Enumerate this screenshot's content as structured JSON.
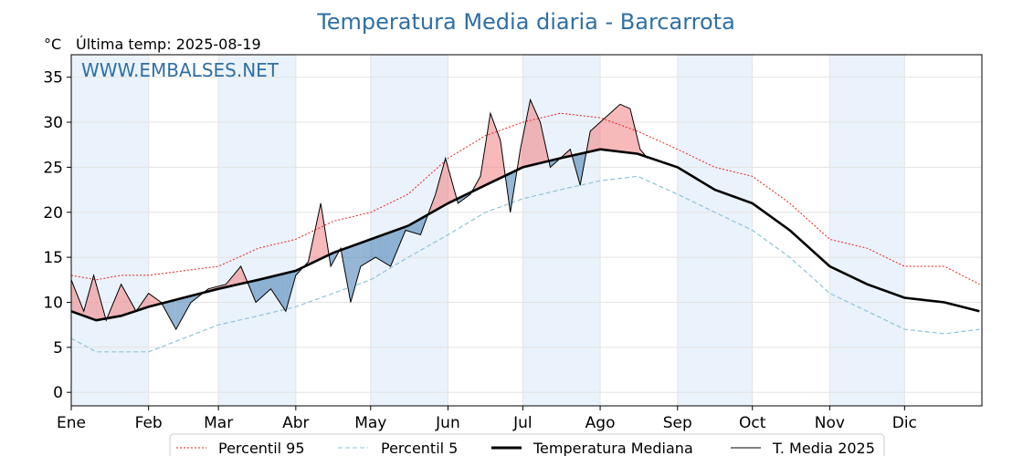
{
  "chart_data": {
    "type": "line",
    "title": "Temperatura Media diaria - Barcarrota",
    "unit_label": "°C",
    "last_temp_label": "Última temp: 2025-08-19",
    "watermark": "WWW.EMBALSES.NET",
    "x_range_days": [
      0,
      365
    ],
    "ylim": [
      -1.5,
      37.5
    ],
    "y_ticks": [
      "0",
      "5",
      "10",
      "15",
      "20",
      "25",
      "30",
      "35"
    ],
    "month_labels": [
      "Ene",
      "Feb",
      "Mar",
      "Abr",
      "May",
      "Jun",
      "Jul",
      "Ago",
      "Sep",
      "Oct",
      "Nov",
      "Dic"
    ],
    "month_start_days": [
      0,
      31,
      59,
      90,
      120,
      151,
      181,
      212,
      243,
      273,
      304,
      334
    ],
    "shaded_months": [
      0,
      2,
      4,
      6,
      8,
      10
    ],
    "colors": {
      "title": "#2f6fa3",
      "p95": "#e8201f",
      "p5": "#8ec3d9",
      "median": "#000000",
      "current": "#000000",
      "above_fill": "#f08080",
      "below_fill": "#4f86b8",
      "month_shade": "#eaf2fb"
    },
    "series": [
      {
        "name": "Percentil 95",
        "style": "dotted",
        "x": [
          0,
          10,
          20,
          31,
          45,
          59,
          75,
          90,
          105,
          120,
          135,
          151,
          166,
          181,
          196,
          212,
          227,
          243,
          258,
          273,
          288,
          304,
          319,
          334,
          350,
          364
        ],
        "y": [
          13,
          12.5,
          13,
          13,
          13.5,
          14,
          16,
          17,
          19,
          20,
          22,
          26,
          28.5,
          30,
          31,
          30.5,
          29,
          27,
          25,
          24,
          21,
          17,
          16,
          14,
          14,
          12
        ]
      },
      {
        "name": "Percentil 5",
        "style": "dashed",
        "x": [
          0,
          10,
          20,
          31,
          45,
          59,
          75,
          90,
          105,
          120,
          135,
          151,
          166,
          181,
          196,
          212,
          227,
          243,
          258,
          273,
          288,
          304,
          319,
          334,
          350,
          364
        ],
        "y": [
          6,
          4.5,
          4.5,
          4.5,
          6,
          7.5,
          8.5,
          9.5,
          11,
          12.5,
          15,
          17.5,
          20,
          21.5,
          22.5,
          23.5,
          24,
          22,
          20,
          18,
          15,
          11,
          9,
          7,
          6.5,
          7
        ]
      },
      {
        "name": "Temperatura Mediana",
        "style": "solid-thick",
        "x": [
          0,
          10,
          20,
          31,
          45,
          59,
          75,
          90,
          105,
          120,
          135,
          151,
          166,
          181,
          196,
          212,
          227,
          243,
          258,
          273,
          288,
          304,
          319,
          334,
          350,
          364
        ],
        "y": [
          9,
          8,
          8.5,
          9.5,
          10.5,
          11.5,
          12.5,
          13.5,
          15.5,
          17,
          18.5,
          21,
          23,
          25,
          26,
          27,
          26.5,
          25,
          22.5,
          21,
          18,
          14,
          12,
          10.5,
          10,
          9
        ]
      },
      {
        "name": "T. Media 2025",
        "style": "solid-thin",
        "x": [
          0,
          5,
          9,
          14,
          20,
          26,
          31,
          36,
          42,
          48,
          55,
          62,
          68,
          74,
          80,
          86,
          90,
          95,
          100,
          104,
          108,
          112,
          116,
          122,
          128,
          134,
          140,
          146,
          150,
          155,
          160,
          164,
          168,
          172,
          176,
          180,
          184,
          188,
          192,
          196,
          200,
          204,
          208,
          212,
          216,
          220,
          224,
          228,
          231
        ],
        "y": [
          12.5,
          9,
          13,
          8,
          12,
          9,
          11,
          10,
          7,
          10,
          11.5,
          12,
          14,
          10,
          11.5,
          9,
          13,
          14.5,
          21,
          14,
          16,
          10,
          14,
          15,
          14,
          18,
          17.5,
          22,
          26,
          21,
          22,
          24,
          31,
          28,
          20,
          27,
          32.5,
          30,
          25,
          26,
          27,
          23,
          29,
          30,
          31,
          32,
          31.5,
          27,
          26
        ]
      }
    ],
    "legend": {
      "placement": "bottom-center",
      "entries": [
        "Percentil 95",
        "Percentil 5",
        "Temperatura Mediana",
        "T. Media 2025"
      ]
    }
  }
}
